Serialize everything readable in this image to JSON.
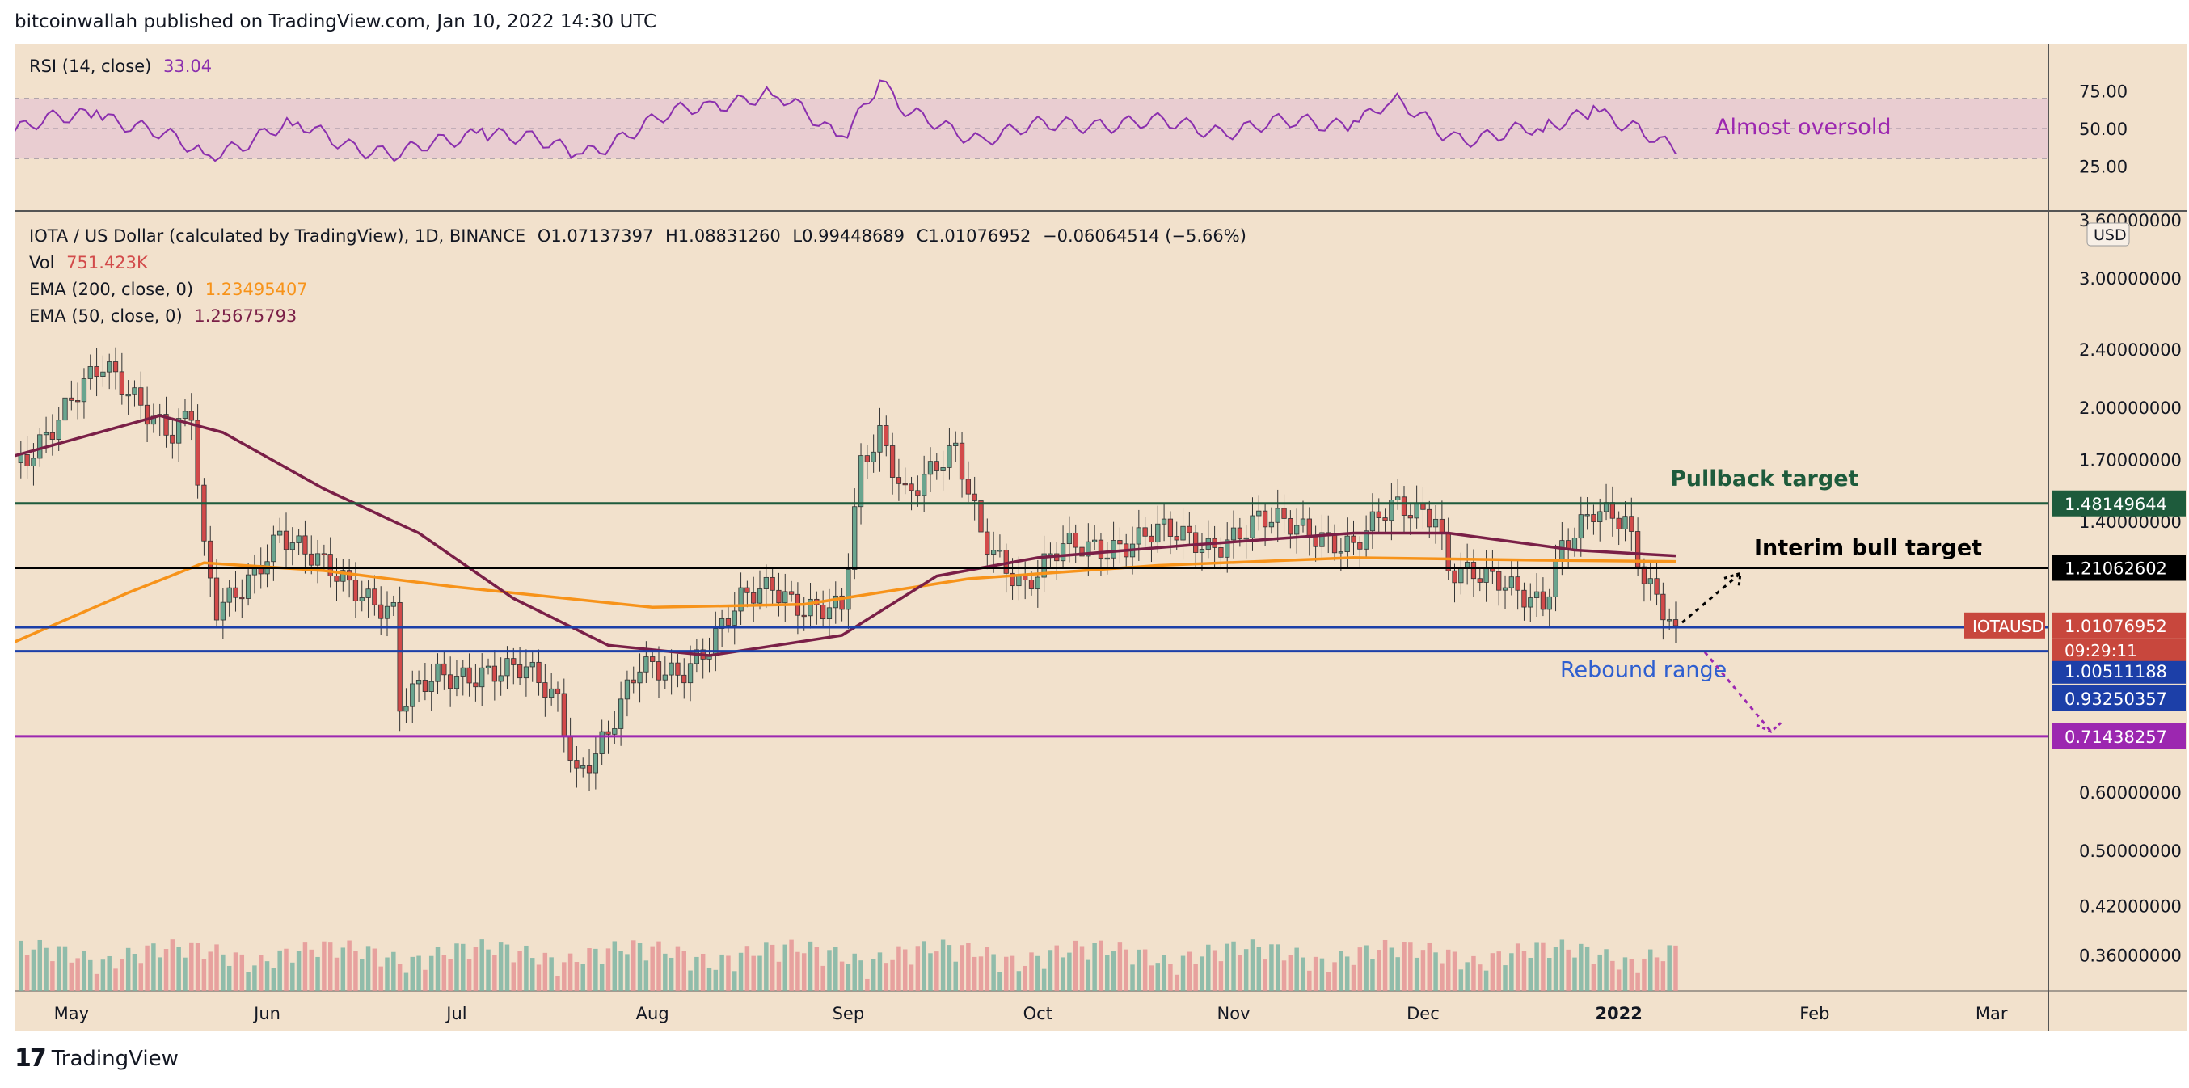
{
  "attribution": "bitcoinwallah published on TradingView.com, Jan 10, 2022 14:30 UTC",
  "footer": {
    "logo_mark": "17",
    "logo_text": "TradingView"
  },
  "colors": {
    "background": "#f2e1cc",
    "up_candle": "#6aa58f",
    "down_candle": "#d24a4a",
    "up_volume": "#7fb5a3",
    "down_volume": "#e59595",
    "ema200": "#f7931a",
    "ema50": "#7a1f47",
    "rsi_line": "#8b2fae",
    "rsi_band": "#e6c6d3",
    "pullback": "#1e5b3c",
    "interim": "#000000",
    "rebound": "#1c3fa8",
    "support": "#9c27b0",
    "price_label": "#c8473d"
  },
  "rsi_legend": {
    "label": "RSI (14, close)",
    "value": "33.04"
  },
  "main_legend": {
    "symbol": "IOTA / US Dollar (calculated by TradingView), 1D, BINANCE",
    "open": "O1.07137397",
    "high": "H1.08831260",
    "low": "L0.99448689",
    "close": "C1.01076952",
    "change": "−0.06064514 (−5.66%)",
    "vol_label": "Vol",
    "vol_value": "751.423K",
    "ema200_label": "EMA (200, close, 0)",
    "ema200_value": "1.23495407",
    "ema50_label": "EMA (50, close, 0)",
    "ema50_value": "1.25675793"
  },
  "annotations": {
    "almost_oversold": "Almost oversold",
    "pullback_target": "Pullback target",
    "interim_bull_target": "Interim bull target",
    "rebound_range": "Rebound range"
  },
  "rsi_axis": [
    "75.00",
    "50.00",
    "25.00"
  ],
  "price_axis": [
    "3.60000000",
    "3.00000000",
    "2.40000000",
    "2.00000000",
    "1.70000000",
    "1.40000000",
    "0.60000000",
    "0.50000000",
    "0.42000000",
    "0.36000000"
  ],
  "axis_currency": "USD",
  "price_labels": [
    {
      "value": "1.48149644",
      "color": "#1e5b3c"
    },
    {
      "value": "1.21062602",
      "color": "#000000"
    },
    {
      "value": "1.01076952",
      "color": "#c8473d"
    },
    {
      "value": "1.00511188",
      "color": "#1c3fa8"
    },
    {
      "value": "0.93250357",
      "color": "#1c3fa8"
    },
    {
      "value": "0.71438257",
      "color": "#9c27b0"
    }
  ],
  "symbol_tag": "IOTAUSD",
  "countdown": "09:29:11",
  "x_axis": [
    "May",
    "Jun",
    "Jul",
    "Aug",
    "Sep",
    "Oct",
    "Nov",
    "Dec",
    "2022",
    "Feb",
    "Mar"
  ],
  "chart_data": {
    "type": "candlestick",
    "title": "IOTA / US Dollar (calculated by TradingView), 1D, BINANCE",
    "x_range": [
      "2021-04-22",
      "2022-03-10"
    ],
    "y_scale": "log",
    "ylim": [
      0.33,
      3.6
    ],
    "horizontal_levels": [
      {
        "name": "Pullback target",
        "value": 1.48149644
      },
      {
        "name": "Interim bull target",
        "value": 1.21062602
      },
      {
        "name": "Rebound range",
        "value": 1.00511188
      },
      {
        "name": "Rebound range",
        "value": 0.93250357
      },
      {
        "name": "",
        "value": 0.71438257
      }
    ],
    "close_path": [
      [
        "2021-04-22",
        1.65
      ],
      [
        "2021-05-01",
        2.05
      ],
      [
        "2021-05-06",
        2.25
      ],
      [
        "2021-05-12",
        2.05
      ],
      [
        "2021-05-17",
        1.85
      ],
      [
        "2021-05-20",
        1.95
      ],
      [
        "2021-05-22",
        1.25
      ],
      [
        "2021-05-24",
        1.05
      ],
      [
        "2021-05-28",
        1.15
      ],
      [
        "2021-06-03",
        1.35
      ],
      [
        "2021-06-07",
        1.25
      ],
      [
        "2021-06-15",
        1.15
      ],
      [
        "2021-06-21",
        1.05
      ],
      [
        "2021-06-22",
        0.78
      ],
      [
        "2021-06-28",
        0.86
      ],
      [
        "2021-07-05",
        0.88
      ],
      [
        "2021-07-12",
        0.87
      ],
      [
        "2021-07-17",
        0.8
      ],
      [
        "2021-07-20",
        0.64
      ],
      [
        "2021-07-25",
        0.72
      ],
      [
        "2021-07-30",
        0.88
      ],
      [
        "2021-08-05",
        0.88
      ],
      [
        "2021-08-10",
        0.95
      ],
      [
        "2021-08-15",
        1.08
      ],
      [
        "2021-08-20",
        1.15
      ],
      [
        "2021-08-25",
        1.08
      ],
      [
        "2021-08-31",
        1.05
      ],
      [
        "2021-09-03",
        1.65
      ],
      [
        "2021-09-06",
        1.85
      ],
      [
        "2021-09-10",
        1.55
      ],
      [
        "2021-09-18",
        1.72
      ],
      [
        "2021-09-22",
        1.35
      ],
      [
        "2021-09-29",
        1.15
      ],
      [
        "2021-10-05",
        1.28
      ],
      [
        "2021-10-12",
        1.3
      ],
      [
        "2021-10-20",
        1.35
      ],
      [
        "2021-10-28",
        1.3
      ],
      [
        "2021-11-05",
        1.4
      ],
      [
        "2021-11-15",
        1.35
      ],
      [
        "2021-11-20",
        1.3
      ],
      [
        "2021-11-26",
        1.45
      ],
      [
        "2021-12-03",
        1.45
      ],
      [
        "2021-12-05",
        1.22
      ],
      [
        "2021-12-12",
        1.15
      ],
      [
        "2021-12-20",
        1.1
      ],
      [
        "2021-12-23",
        1.3
      ],
      [
        "2021-12-28",
        1.42
      ],
      [
        "2022-01-02",
        1.4
      ],
      [
        "2022-01-05",
        1.2
      ],
      [
        "2022-01-10",
        1.01
      ]
    ],
    "ema200_path": [
      [
        "2021-04-22",
        0.96
      ],
      [
        "2021-05-10",
        1.12
      ],
      [
        "2021-05-22",
        1.23
      ],
      [
        "2021-06-10",
        1.2
      ],
      [
        "2021-07-01",
        1.14
      ],
      [
        "2021-08-01",
        1.07
      ],
      [
        "2021-08-25",
        1.08
      ],
      [
        "2021-09-20",
        1.17
      ],
      [
        "2021-10-20",
        1.22
      ],
      [
        "2021-11-20",
        1.25
      ],
      [
        "2021-12-20",
        1.24
      ],
      [
        "2022-01-10",
        1.235
      ]
    ],
    "ema50_path": [
      [
        "2021-04-22",
        1.72
      ],
      [
        "2021-05-15",
        1.95
      ],
      [
        "2021-05-25",
        1.85
      ],
      [
        "2021-06-10",
        1.55
      ],
      [
        "2021-06-25",
        1.35
      ],
      [
        "2021-07-10",
        1.1
      ],
      [
        "2021-07-25",
        0.95
      ],
      [
        "2021-08-10",
        0.92
      ],
      [
        "2021-08-31",
        0.98
      ],
      [
        "2021-09-15",
        1.18
      ],
      [
        "2021-10-01",
        1.25
      ],
      [
        "2021-10-25",
        1.3
      ],
      [
        "2021-11-20",
        1.35
      ],
      [
        "2021-12-05",
        1.35
      ],
      [
        "2021-12-25",
        1.28
      ],
      [
        "2022-01-10",
        1.257
      ]
    ],
    "rsi_path": [
      [
        "2021-04-22",
        48
      ],
      [
        "2021-05-05",
        62
      ],
      [
        "2021-05-22",
        33
      ],
      [
        "2021-06-05",
        52
      ],
      [
        "2021-06-22",
        31
      ],
      [
        "2021-07-05",
        50
      ],
      [
        "2021-07-20",
        33
      ],
      [
        "2021-08-10",
        68
      ],
      [
        "2021-08-20",
        72
      ],
      [
        "2021-08-31",
        45
      ],
      [
        "2021-09-06",
        82
      ],
      [
        "2021-09-10",
        58
      ],
      [
        "2021-09-22",
        45
      ],
      [
        "2021-10-10",
        55
      ],
      [
        "2021-10-30",
        50
      ],
      [
        "2021-11-20",
        55
      ],
      [
        "2021-11-26",
        68
      ],
      [
        "2021-12-05",
        45
      ],
      [
        "2021-12-20",
        48
      ],
      [
        "2021-12-28",
        65
      ],
      [
        "2022-01-05",
        45
      ],
      [
        "2022-01-10",
        33.04
      ]
    ],
    "last_close": 1.01076952
  }
}
